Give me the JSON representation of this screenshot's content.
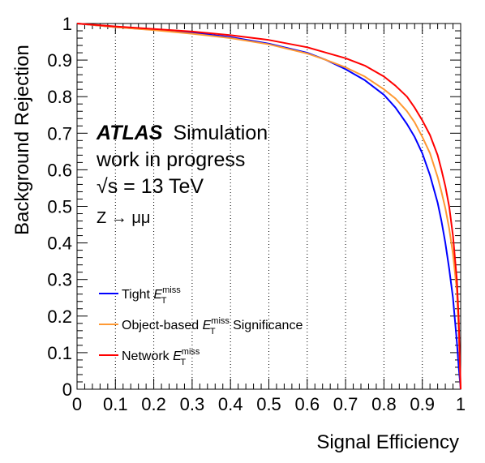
{
  "chart_data": {
    "type": "line",
    "title": "",
    "xlabel": "Signal Efficiency",
    "ylabel": "Background Rejection",
    "xlim": [
      0,
      1
    ],
    "ylim": [
      0,
      1
    ],
    "x_ticks": [
      "0",
      "0.1",
      "0.2",
      "0.3",
      "0.4",
      "0.5",
      "0.6",
      "0.7",
      "0.8",
      "0.9",
      "1"
    ],
    "y_ticks": [
      "0",
      "0.1",
      "0.2",
      "0.3",
      "0.4",
      "0.5",
      "0.6",
      "0.7",
      "0.8",
      "0.9",
      "1"
    ],
    "grid": "vertical dotted",
    "legend_placement": "bottom-left",
    "annotations": {
      "experiment": "ATLAS",
      "experiment_suffix": "Simulation",
      "status": "work in progress",
      "energy": "√s = 13 TeV",
      "process": "Z → μμ"
    },
    "series": [
      {
        "name": "Tight E_T^miss",
        "legend_prefix": "Tight ",
        "legend_suffix": "",
        "color": "#0000ff",
        "x": [
          0,
          0.1,
          0.2,
          0.3,
          0.4,
          0.5,
          0.6,
          0.65,
          0.7,
          0.75,
          0.8,
          0.83,
          0.86,
          0.88,
          0.9,
          0.92,
          0.94,
          0.95,
          0.96,
          0.97,
          0.98,
          0.99,
          0.995,
          1.0
        ],
        "y": [
          1.0,
          0.99,
          0.983,
          0.975,
          0.963,
          0.945,
          0.92,
          0.9,
          0.875,
          0.845,
          0.805,
          0.77,
          0.725,
          0.69,
          0.645,
          0.585,
          0.51,
          0.46,
          0.4,
          0.33,
          0.25,
          0.13,
          0.06,
          0.0
        ]
      },
      {
        "name": "Object-based E_T^miss Significance",
        "legend_prefix": "Object-based ",
        "legend_suffix": " Significance",
        "color": "#ff9933",
        "x": [
          0,
          0.1,
          0.2,
          0.3,
          0.4,
          0.5,
          0.6,
          0.65,
          0.7,
          0.75,
          0.8,
          0.83,
          0.86,
          0.88,
          0.9,
          0.92,
          0.94,
          0.95,
          0.96,
          0.97,
          0.98,
          0.99,
          0.995,
          1.0
        ],
        "y": [
          1.0,
          0.99,
          0.982,
          0.972,
          0.96,
          0.943,
          0.918,
          0.9,
          0.88,
          0.855,
          0.82,
          0.795,
          0.76,
          0.73,
          0.69,
          0.645,
          0.58,
          0.54,
          0.495,
          0.44,
          0.37,
          0.27,
          0.16,
          0.0
        ]
      },
      {
        "name": "Network E_T^miss",
        "legend_prefix": "Network ",
        "legend_suffix": "",
        "color": "#ff0000",
        "x": [
          0,
          0.1,
          0.2,
          0.3,
          0.4,
          0.5,
          0.6,
          0.65,
          0.7,
          0.75,
          0.8,
          0.83,
          0.86,
          0.88,
          0.9,
          0.92,
          0.94,
          0.95,
          0.96,
          0.97,
          0.98,
          0.99,
          0.995,
          1.0
        ],
        "y": [
          1.0,
          0.992,
          0.985,
          0.978,
          0.968,
          0.955,
          0.935,
          0.92,
          0.905,
          0.885,
          0.855,
          0.83,
          0.8,
          0.77,
          0.735,
          0.695,
          0.64,
          0.6,
          0.555,
          0.5,
          0.42,
          0.3,
          0.19,
          0.0
        ]
      }
    ]
  }
}
